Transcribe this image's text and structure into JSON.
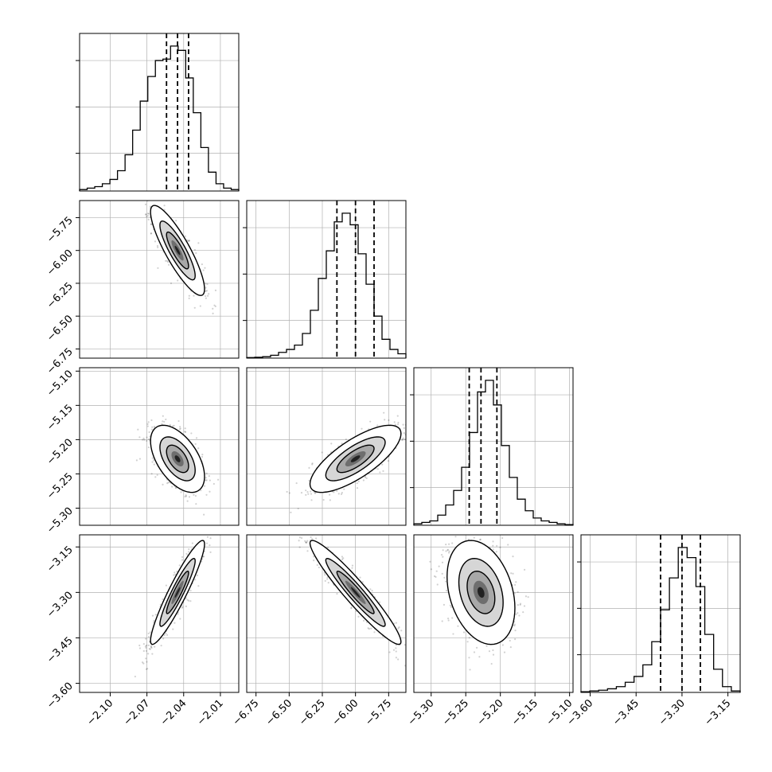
{
  "chart_data": {
    "type": "corner",
    "grid": true,
    "params": [
      {
        "range": [
          -2.125,
          -1.995
        ],
        "median": -2.045,
        "q16": -2.054,
        "q84": -2.036,
        "ticks": [
          -2.1,
          -2.07,
          -2.04,
          -2.01
        ],
        "tick_labels": [
          "−2.10",
          "−2.07",
          "−2.04",
          "−2.01"
        ]
      },
      {
        "range": [
          -6.82,
          -5.62
        ],
        "median": -6.0,
        "q16": -6.14,
        "q84": -5.86,
        "ticks": [
          -6.75,
          -6.5,
          -6.25,
          -6.0,
          -5.75
        ],
        "tick_labels": [
          "−6.75",
          "−6.50",
          "−6.25",
          "−6.00",
          "−5.75"
        ]
      },
      {
        "range": [
          -5.325,
          -5.095
        ],
        "median": -5.228,
        "q16": -5.245,
        "q84": -5.205,
        "ticks": [
          -5.3,
          -5.25,
          -5.2,
          -5.15,
          -5.1
        ],
        "tick_labels": [
          "−5.30",
          "−5.25",
          "−5.20",
          "−5.15",
          "−5.10"
        ]
      },
      {
        "range": [
          -3.63,
          -3.11
        ],
        "median": -3.3,
        "q16": -3.37,
        "q84": -3.24,
        "ticks": [
          -3.6,
          -3.45,
          -3.3,
          -3.15
        ],
        "tick_labels": [
          "−3.60",
          "−3.45",
          "−3.30",
          "−3.15"
        ]
      }
    ],
    "histograms": [
      {
        "param": 0,
        "counts": [
          1,
          2,
          3,
          5,
          8,
          14,
          25,
          42,
          62,
          79,
          90,
          91,
          100,
          97,
          78,
          54,
          30,
          13,
          5,
          2,
          1
        ]
      },
      {
        "param": 1,
        "counts": [
          0.4,
          0.6,
          1,
          2,
          4,
          6,
          9,
          17,
          33,
          55,
          74,
          94,
          100,
          92,
          72,
          51,
          29,
          13,
          6,
          3
        ]
      },
      {
        "param": 2,
        "counts": [
          1,
          2,
          3,
          7,
          14,
          24,
          40,
          64,
          92,
          100,
          83,
          55,
          33,
          18,
          10,
          5,
          3,
          2,
          1,
          0.5
        ]
      },
      {
        "param": 3,
        "counts": [
          0.5,
          1,
          1.5,
          2.5,
          4,
          7,
          11,
          19,
          35,
          57,
          79,
          100,
          93,
          73,
          40,
          16,
          4,
          1
        ]
      }
    ],
    "pairs": [
      {
        "x": 0,
        "y": 1,
        "cov": [
          [
            8.1e-05,
            -0.00108
          ],
          [
            -0.00108,
            0.0196
          ]
        ]
      },
      {
        "x": 0,
        "y": 2,
        "cov": [
          [
            8.1e-05,
            -9.5e-05
          ],
          [
            -9.5e-05,
            0.0004
          ]
        ]
      },
      {
        "x": 1,
        "y": 2,
        "cov": [
          [
            0.0196,
            0.0021
          ],
          [
            0.0021,
            0.0004
          ]
        ]
      },
      {
        "x": 0,
        "y": 3,
        "cov": [
          [
            8.1e-05,
            0.000585
          ],
          [
            0.000585,
            0.0049
          ]
        ]
      },
      {
        "x": 1,
        "y": 3,
        "cov": [
          [
            0.0196,
            -0.0093
          ],
          [
            -0.0093,
            0.0049
          ]
        ]
      },
      {
        "x": 2,
        "y": 3,
        "cov": [
          [
            0.0004,
            -0.00042
          ],
          [
            -0.00042,
            0.0049
          ]
        ]
      }
    ],
    "contour_levels_sigma": [
      1,
      2,
      3
    ]
  },
  "colors": {
    "axis": "#000000",
    "grid": "#b0b0b0",
    "hist": "#000000",
    "scatter": "#000000",
    "background": "#ffffff"
  }
}
